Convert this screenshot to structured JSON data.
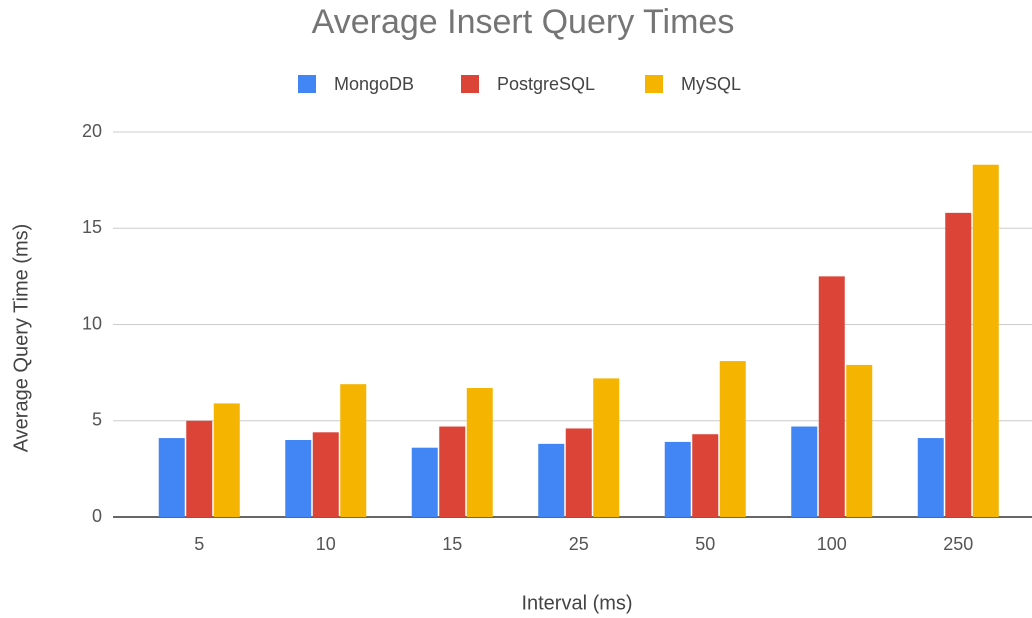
{
  "chart_data": {
    "type": "bar",
    "title": "Average Insert Query Times",
    "x_label": "Interval (ms)",
    "y_label": "Average Query Time (ms)",
    "categories": [
      "5",
      "10",
      "15",
      "25",
      "50",
      "100",
      "250"
    ],
    "series": [
      {
        "name": "MongoDB",
        "color": "#4285f4",
        "values": [
          4.1,
          4.0,
          3.6,
          3.8,
          3.9,
          4.7,
          4.1
        ]
      },
      {
        "name": "PostgreSQL",
        "color": "#db4437",
        "values": [
          5.0,
          4.4,
          4.7,
          4.6,
          4.3,
          12.5,
          15.8
        ]
      },
      {
        "name": "MySQL",
        "color": "#f4b400",
        "values": [
          5.9,
          6.9,
          6.7,
          7.2,
          8.1,
          7.9,
          18.3
        ]
      }
    ],
    "ylim": [
      0,
      20
    ],
    "yticks": [
      0,
      5,
      10,
      15,
      20
    ],
    "grid": true,
    "legend": "top"
  }
}
